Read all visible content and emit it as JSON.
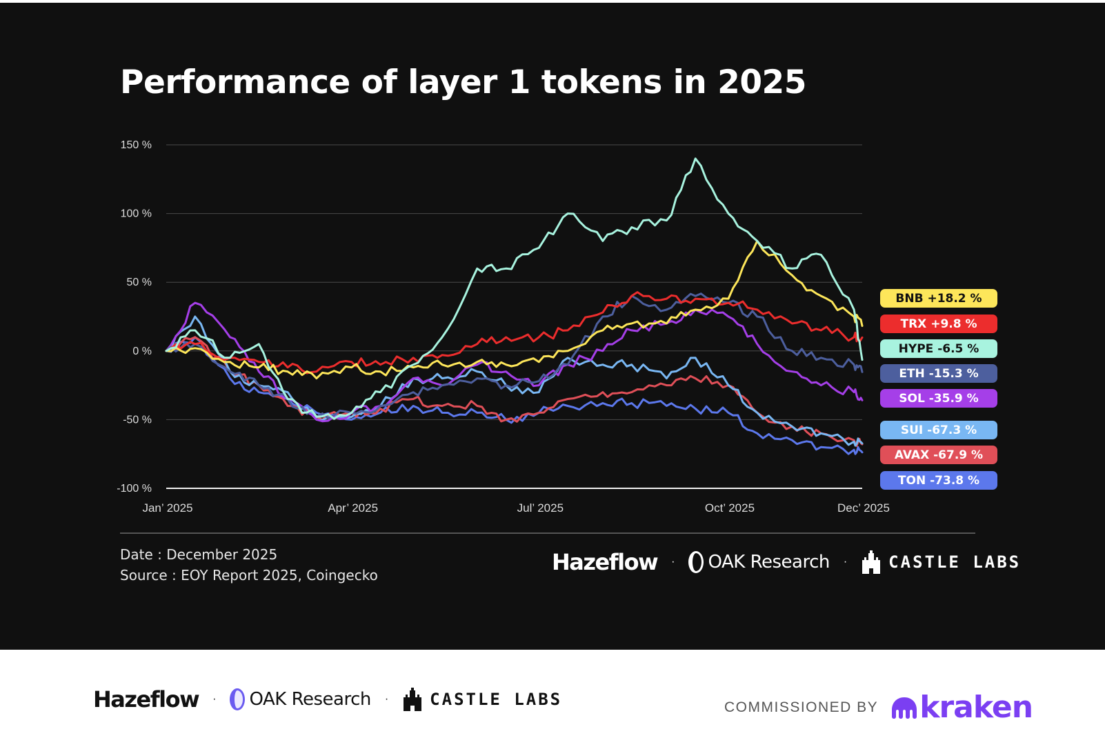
{
  "title": "Performance of layer 1 tokens in 2025",
  "meta": {
    "date": "Date : December 2025",
    "source": "Source : EOY Report 2025, Coingecko"
  },
  "brands": {
    "hazeflow": "Hazeflow",
    "oak": "OAK Research",
    "castle": "CASTLE LABS",
    "separator": "·"
  },
  "commissioned": {
    "label": "COMMISSIONED BY",
    "brand": "kraken"
  },
  "colors": {
    "panel_bg": "#101010",
    "BNB": "#fde65a",
    "TRX": "#ec2d2d",
    "HYPE": "#a8f3df",
    "ETH": "#4d5f9e",
    "SOL": "#a53fe8",
    "SUI": "#79b7f3",
    "AVAX": "#e04f58",
    "TON": "#5c78ec",
    "kraken": "#7b3ff2",
    "oak_accent": "#6b5cf0"
  },
  "chart_data": {
    "type": "line",
    "title": "Performance of layer 1 tokens in 2025",
    "xlabel": "",
    "ylabel": "",
    "x_ticks": [
      "Jan’ 2025",
      "Apr’ 2025",
      "Jul’ 2025",
      "Oct’ 2025",
      "Dec’ 2025"
    ],
    "y_ticks": [
      "150 %",
      "100 %",
      "50 %",
      "0 %",
      "-50 %",
      "-100 %"
    ],
    "ylim": [
      -100,
      150
    ],
    "grid": true,
    "legend": "right, end-of-line labels",
    "x": [
      "2025-01-01",
      "2025-01-15",
      "2025-02-01",
      "2025-02-15",
      "2025-03-01",
      "2025-03-15",
      "2025-04-01",
      "2025-04-15",
      "2025-05-01",
      "2025-05-15",
      "2025-06-01",
      "2025-06-15",
      "2025-07-01",
      "2025-07-15",
      "2025-08-01",
      "2025-08-15",
      "2025-09-01",
      "2025-09-15",
      "2025-10-01",
      "2025-10-15",
      "2025-11-01",
      "2025-11-15",
      "2025-12-01",
      "2025-12-05"
    ],
    "series": [
      {
        "name": "BNB",
        "end_label": "BNB +18.2 %",
        "color": "#fde65a",
        "values": [
          0,
          2,
          -8,
          -12,
          -15,
          -20,
          -12,
          -15,
          -12,
          -10,
          -8,
          -10,
          -8,
          0,
          15,
          20,
          20,
          30,
          38,
          80,
          55,
          40,
          25,
          18.2
        ]
      },
      {
        "name": "TRX",
        "end_label": "TRX +9.8 %",
        "color": "#ec2d2d",
        "values": [
          0,
          5,
          -5,
          -8,
          -12,
          -15,
          -8,
          -10,
          -5,
          -3,
          5,
          10,
          10,
          15,
          28,
          40,
          38,
          38,
          35,
          30,
          20,
          15,
          10,
          9.8
        ]
      },
      {
        "name": "HYPE",
        "end_label": "HYPE -6.5 %",
        "color": "#a8f3df",
        "values": [
          0,
          15,
          -5,
          5,
          -35,
          -48,
          -45,
          -30,
          -10,
          10,
          60,
          60,
          75,
          100,
          80,
          90,
          95,
          140,
          100,
          80,
          60,
          70,
          30,
          -6.5
        ]
      },
      {
        "name": "ETH",
        "end_label": "ETH -15.3 %",
        "color": "#4d5f9e",
        "values": [
          0,
          5,
          -15,
          -25,
          -35,
          -48,
          -45,
          -40,
          -30,
          -25,
          -20,
          -25,
          -22,
          -10,
          25,
          40,
          30,
          40,
          35,
          25,
          0,
          -5,
          -10,
          -15.3
        ]
      },
      {
        "name": "SOL",
        "end_label": "SOL -35.9 %",
        "color": "#a53fe8",
        "values": [
          0,
          35,
          10,
          -15,
          -35,
          -50,
          -45,
          -40,
          -20,
          -25,
          -10,
          -15,
          -25,
          -10,
          0,
          15,
          20,
          30,
          25,
          5,
          -15,
          -25,
          -30,
          -35.9
        ]
      },
      {
        "name": "SUI",
        "end_label": "SUI -67.3 %",
        "color": "#79b7f3",
        "values": [
          0,
          25,
          -15,
          -25,
          -30,
          -50,
          -48,
          -40,
          -20,
          -20,
          -15,
          -25,
          -30,
          -5,
          -10,
          -10,
          -20,
          -5,
          -25,
          -45,
          -55,
          -60,
          -66,
          -67.3
        ]
      },
      {
        "name": "AVAX",
        "end_label": "AVAX -67.9 %",
        "color": "#e04f58",
        "values": [
          0,
          10,
          -15,
          -25,
          -40,
          -48,
          -45,
          -42,
          -35,
          -40,
          -40,
          -50,
          -45,
          -35,
          -30,
          -30,
          -25,
          -20,
          -25,
          -45,
          -55,
          -60,
          -65,
          -67.9
        ]
      },
      {
        "name": "TON",
        "end_label": "TON -73.8 %",
        "color": "#5c78ec",
        "values": [
          0,
          10,
          -20,
          -30,
          -35,
          -45,
          -50,
          -45,
          -40,
          -45,
          -45,
          -50,
          -45,
          -40,
          -38,
          -38,
          -40,
          -42,
          -45,
          -60,
          -65,
          -70,
          -72,
          -73.8
        ]
      }
    ]
  }
}
